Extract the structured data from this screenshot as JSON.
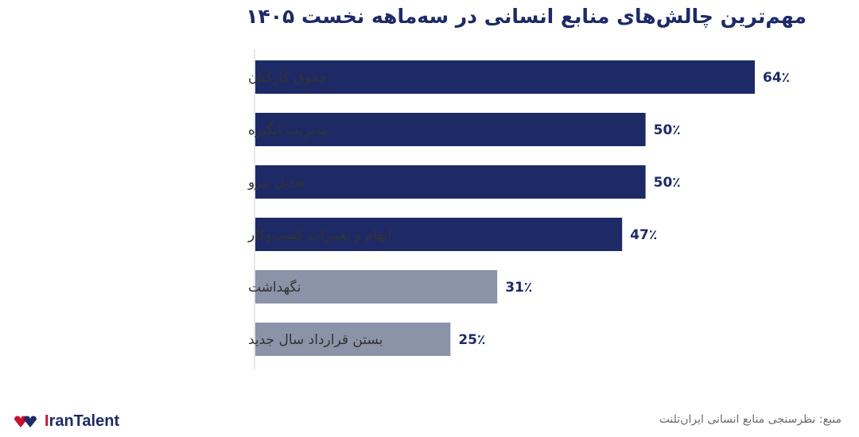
{
  "chart_data": {
    "type": "bar",
    "orientation": "horizontal",
    "title": "مهم‌ترین چالش‌های منابع انسانی در سه‌ماهه نخست ۱۴۰۵",
    "categories": [
      "حقوق کارکنان",
      "مدیریت انگیزه",
      "تعدیل نیرو",
      "ابهام و تغییرات کسب‌وکار",
      "نگهداشت",
      "بستن قرارداد سال جدید"
    ],
    "values": [
      64,
      50,
      50,
      47,
      31,
      25
    ],
    "value_labels": [
      "64٪",
      "50٪",
      "50٪",
      "47٪",
      "31٪",
      "25٪"
    ],
    "bar_colors": [
      "#1d2a66",
      "#1d2a66",
      "#1d2a66",
      "#1d2a66",
      "#8b93a8",
      "#8b93a8"
    ],
    "xlim": [
      0,
      100
    ],
    "grid": false,
    "legend": "none"
  },
  "footer": {
    "source": "منبع: نظرسنجی منابع انسانی ایران‌تلنت",
    "logo_text": "IranTalent"
  },
  "colors": {
    "primary": "#1d2a66",
    "secondary": "#8b93a8",
    "accent": "#c8102e"
  }
}
